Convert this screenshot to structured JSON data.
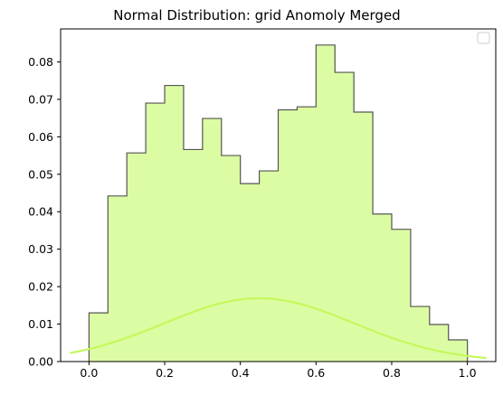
{
  "chart_data": {
    "type": "histogram",
    "title": "Normal Distribution: grid Anomoly Merged",
    "xlabel": "",
    "ylabel": "",
    "xlim": [
      -0.075,
      1.075
    ],
    "ylim": [
      0,
      0.0888
    ],
    "xticks": [
      0.0,
      0.2,
      0.4,
      0.6,
      0.8,
      1.0
    ],
    "xtick_labels": [
      "0.0",
      "0.2",
      "0.4",
      "0.6",
      "0.8",
      "1.0"
    ],
    "yticks": [
      0.0,
      0.01,
      0.02,
      0.03,
      0.04,
      0.05,
      0.06,
      0.07,
      0.08
    ],
    "ytick_labels": [
      "0.00",
      "0.01",
      "0.02",
      "0.03",
      "0.04",
      "0.05",
      "0.06",
      "0.07",
      "0.08"
    ],
    "grid": false,
    "legend": {
      "placement": "upper right",
      "entries": []
    },
    "bin_edges": [
      0.0,
      0.05,
      0.1,
      0.15,
      0.2,
      0.25,
      0.3,
      0.35,
      0.4,
      0.45,
      0.5,
      0.55,
      0.6,
      0.65,
      0.7,
      0.75,
      0.8,
      0.85,
      0.9,
      0.95,
      1.0
    ],
    "values": [
      0.013,
      0.0442,
      0.0557,
      0.069,
      0.0737,
      0.0566,
      0.0649,
      0.055,
      0.0475,
      0.0509,
      0.0672,
      0.068,
      0.0845,
      0.0772,
      0.0666,
      0.0394,
      0.0353,
      0.0147,
      0.0099,
      0.0058
    ],
    "curve": {
      "type": "normal_pdf_scaled",
      "x_range": [
        -0.05,
        1.05
      ],
      "mean": 0.45,
      "std": 0.25,
      "peak": 0.0169
    },
    "colors": {
      "fill": "#dcfca3",
      "edge": "#555555",
      "curve": "#c4f85c",
      "axis": "#000000"
    }
  }
}
